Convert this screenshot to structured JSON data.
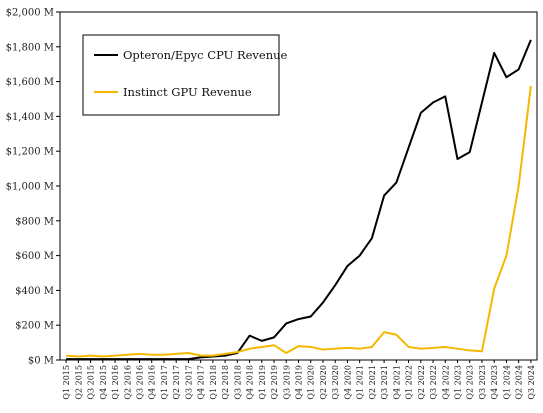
{
  "chart_data": {
    "type": "line",
    "title": "",
    "xlabel": "",
    "ylabel": "",
    "ylim": [
      0,
      2000
    ],
    "y_unit": "M",
    "y_ticks": [
      0,
      200,
      400,
      600,
      800,
      1000,
      1200,
      1400,
      1600,
      1800,
      2000
    ],
    "y_tick_labels": [
      "$0 M",
      "$200 M",
      "$400 M",
      "$600 M",
      "$800 M",
      "$1,000 M",
      "$1,200 M",
      "$1,400 M",
      "$1,600 M",
      "$1,800 M",
      "$2,000 M"
    ],
    "grid": false,
    "legend_position": "top-left",
    "categories": [
      "Q1 2015",
      "Q2 2015",
      "Q3 2015",
      "Q4 2015",
      "Q1 2016",
      "Q2 2016",
      "Q3 2016",
      "Q4 2016",
      "Q1 2017",
      "Q2 2017",
      "Q3 2017",
      "Q4 2017",
      "Q1 2018",
      "Q2 2018",
      "Q3 2018",
      "Q4 2018",
      "Q1 2019",
      "Q2 2019",
      "Q3 2019",
      "Q4 2019",
      "Q1 2020",
      "Q2 2020",
      "Q3 2020",
      "Q4 2020",
      "Q1 2021",
      "Q2 2021",
      "Q3 2021",
      "Q4 2021",
      "Q1 2022",
      "Q2 2022",
      "Q3 2022",
      "Q4 2022",
      "Q1 2023",
      "Q2 2023",
      "Q3 2023",
      "Q4 2023",
      "Q1 2024",
      "Q2 2024",
      "Q3 2024"
    ],
    "series": [
      {
        "name": "Opteron/Epyc CPU Revenue",
        "color": "#000000",
        "values": [
          5,
          5,
          5,
          5,
          5,
          5,
          5,
          5,
          5,
          5,
          5,
          15,
          20,
          25,
          40,
          140,
          110,
          130,
          210,
          235,
          250,
          330,
          430,
          540,
          600,
          700,
          945,
          1020,
          1220,
          1420,
          1480,
          1515,
          1155,
          1195,
          1480,
          1765,
          1625,
          1670,
          1840
        ]
      },
      {
        "name": "Instinct GPU Revenue",
        "color": "#f5b800",
        "values": [
          25,
          20,
          25,
          20,
          25,
          30,
          35,
          30,
          30,
          35,
          40,
          25,
          25,
          35,
          45,
          65,
          75,
          85,
          40,
          80,
          75,
          60,
          65,
          70,
          65,
          75,
          160,
          145,
          75,
          65,
          70,
          75,
          65,
          55,
          50,
          410,
          600,
          1000,
          1575
        ]
      }
    ]
  }
}
